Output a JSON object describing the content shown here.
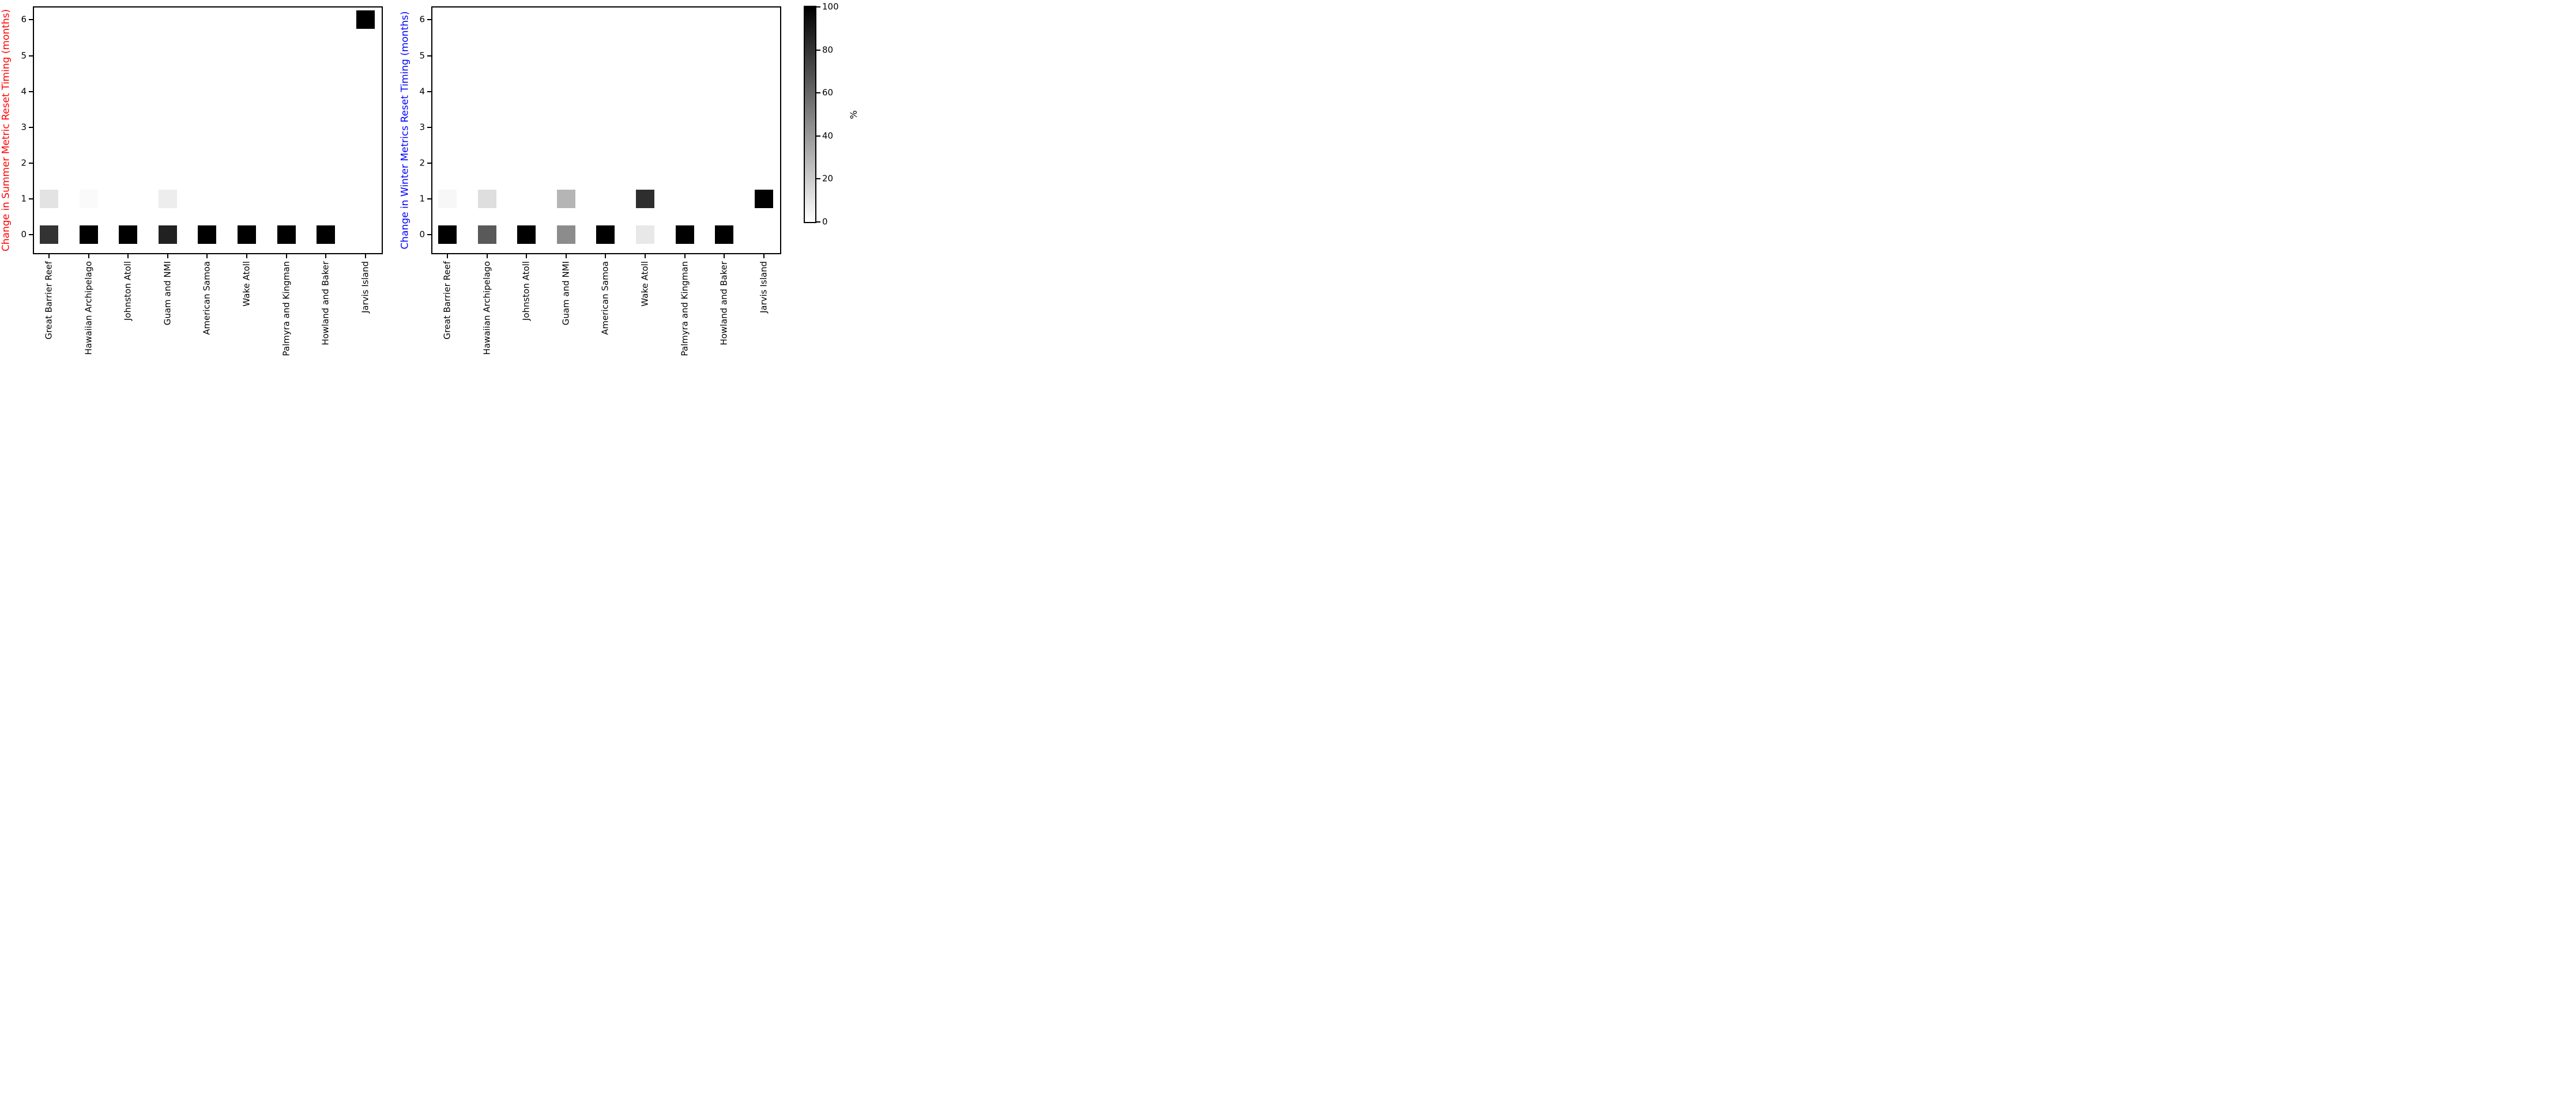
{
  "figure": {
    "background": "#ffffff",
    "categories": [
      "Great Barrier Reef",
      "Hawaiian Archipelago",
      "Johnston Atoll",
      "Guam and NMI",
      "American Samoa",
      "Wake Atoll",
      "Palmyra and Kingman",
      "Howland and Baker",
      "Jarvis Island"
    ],
    "colorbar": {
      "label": "%",
      "min": 0,
      "max": 100,
      "ticks": [
        100,
        80,
        60,
        40,
        20,
        0
      ],
      "top_color": "#000000",
      "bottom_color": "#ffffff"
    }
  },
  "chart_data": [
    {
      "type": "heatmap",
      "title": "",
      "xlabel": "",
      "ylabel": "Change in Summer Metric Reset Timing (months)",
      "ylabel_color": "#ff0000",
      "colormap": "Greys",
      "legend_position": "shared colorbar right",
      "grid": false,
      "categories": [
        "Great Barrier Reef",
        "Hawaiian Archipelago",
        "Johnston Atoll",
        "Guam and NMI",
        "American Samoa",
        "Wake Atoll",
        "Palmyra and Kingman",
        "Howland and Baker",
        "Jarvis Island"
      ],
      "yticks": [
        0,
        1,
        2,
        3,
        4,
        5,
        6
      ],
      "ylim": [
        -0.5,
        6.35
      ],
      "points": [
        {
          "category": "Great Barrier Reef",
          "months": 0,
          "percent": 80
        },
        {
          "category": "Great Barrier Reef",
          "months": 1,
          "percent": 11
        },
        {
          "category": "Hawaiian Archipelago",
          "months": 0,
          "percent": 100
        },
        {
          "category": "Hawaiian Archipelago",
          "months": 1,
          "percent": 2
        },
        {
          "category": "Johnston Atoll",
          "months": 0,
          "percent": 100
        },
        {
          "category": "Guam and NMI",
          "months": 0,
          "percent": 87
        },
        {
          "category": "Guam and NMI",
          "months": 1,
          "percent": 7
        },
        {
          "category": "American Samoa",
          "months": 0,
          "percent": 100
        },
        {
          "category": "Wake Atoll",
          "months": 0,
          "percent": 100
        },
        {
          "category": "Palmyra and Kingman",
          "months": 0,
          "percent": 100
        },
        {
          "category": "Howland and Baker",
          "months": 0,
          "percent": 100
        },
        {
          "category": "Jarvis Island",
          "months": 6,
          "percent": 100
        }
      ]
    },
    {
      "type": "heatmap",
      "title": "",
      "xlabel": "",
      "ylabel": "Change in Winter Metrics Reset Timing (months)",
      "ylabel_color": "#0000ff",
      "colormap": "Greys",
      "legend_position": "shared colorbar right",
      "grid": false,
      "categories": [
        "Great Barrier Reef",
        "Hawaiian Archipelago",
        "Johnston Atoll",
        "Guam and NMI",
        "American Samoa",
        "Wake Atoll",
        "Palmyra and Kingman",
        "Howland and Baker",
        "Jarvis Island"
      ],
      "yticks": [
        0,
        1,
        2,
        3,
        4,
        5,
        6
      ],
      "ylim": [
        -0.5,
        6.35
      ],
      "points": [
        {
          "category": "Great Barrier Reef",
          "months": 0,
          "percent": 100
        },
        {
          "category": "Great Barrier Reef",
          "months": 1,
          "percent": 3
        },
        {
          "category": "Hawaiian Archipelago",
          "months": 0,
          "percent": 65
        },
        {
          "category": "Hawaiian Archipelago",
          "months": 1,
          "percent": 13
        },
        {
          "category": "Johnston Atoll",
          "months": 0,
          "percent": 100
        },
        {
          "category": "Guam and NMI",
          "months": 0,
          "percent": 45
        },
        {
          "category": "Guam and NMI",
          "months": 1,
          "percent": 29
        },
        {
          "category": "American Samoa",
          "months": 0,
          "percent": 100
        },
        {
          "category": "Wake Atoll",
          "months": 0,
          "percent": 9
        },
        {
          "category": "Wake Atoll",
          "months": 1,
          "percent": 82
        },
        {
          "category": "Palmyra and Kingman",
          "months": 0,
          "percent": 100
        },
        {
          "category": "Howland and Baker",
          "months": 0,
          "percent": 100
        },
        {
          "category": "Jarvis Island",
          "months": 1,
          "percent": 100
        }
      ]
    }
  ]
}
